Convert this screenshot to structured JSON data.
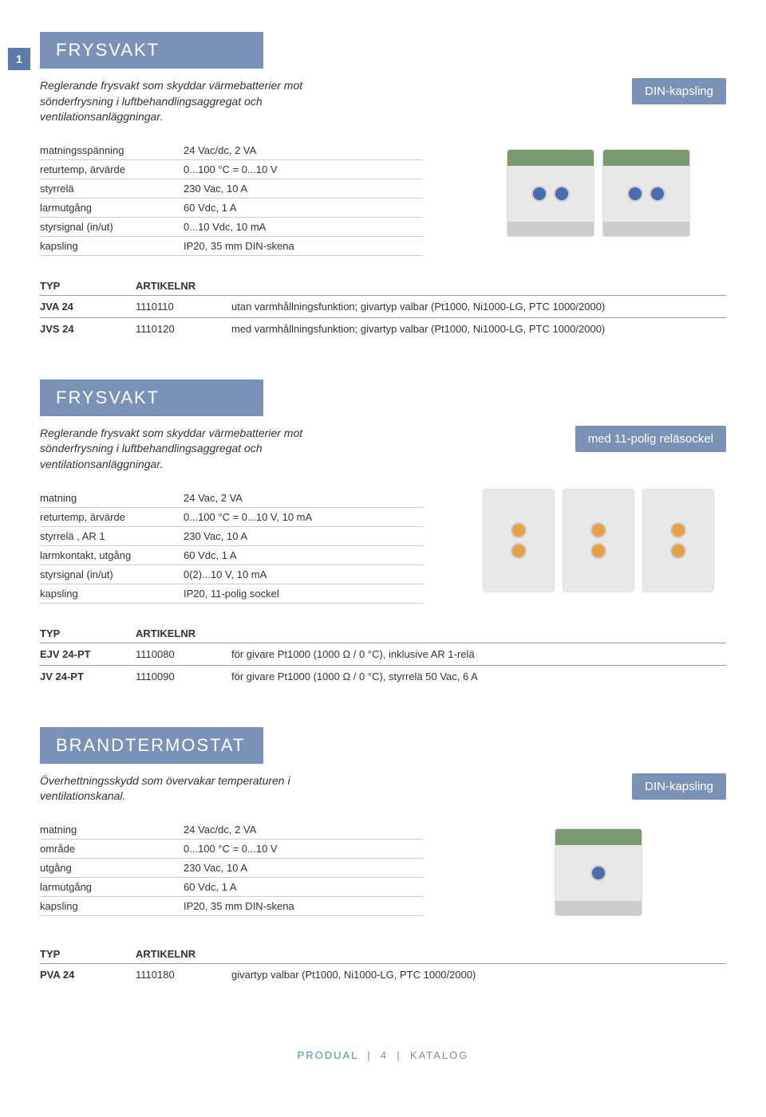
{
  "page_number": "1",
  "sections": [
    {
      "title": "FRYSVAKT",
      "description": "Reglerande frysvakt som skyddar värmebatterier mot sönderfrysning i luftbehandlingsaggregat och ventilationsanläggningar.",
      "badge": "DIN-kapsling",
      "specs": [
        {
          "label": "matningsspänning",
          "value": "24 Vac/dc, 2 VA"
        },
        {
          "label": "returtemp, ärvärde",
          "value": "0...100 °C = 0...10 V"
        },
        {
          "label": "styrrelä",
          "value": "230 Vac, 10 A"
        },
        {
          "label": "larmutgång",
          "value": "60 Vdc, 1 A"
        },
        {
          "label": "styrsignal (in/ut)",
          "value": "0...10 Vdc, 10 mA"
        },
        {
          "label": "kapsling",
          "value": "IP20, 35 mm DIN-skena"
        }
      ],
      "typ_header": {
        "col1": "TYP",
        "col2": "ARTIKELNR"
      },
      "typ_rows": [
        {
          "col1": "JVA 24",
          "col2": "1110110",
          "col3": "utan varmhållningsfunktion; givartyp valbar (Pt1000, Ni1000-LG, PTC 1000/2000)"
        },
        {
          "col1": "JVS 24",
          "col2": "1110120",
          "col3": "med varmhållningsfunktion; givartyp valbar (Pt1000, Ni1000-LG, PTC 1000/2000)"
        }
      ],
      "img_style": "din-double"
    },
    {
      "title": "FRYSVAKT",
      "description": "Reglerande frysvakt som skyddar värmebatterier mot sönderfrysning i luftbehandlingsaggregat och ventilationsanläggningar.",
      "badge": "med 11-polig reläsockel",
      "specs": [
        {
          "label": "matning",
          "value": "24 Vac, 2 VA"
        },
        {
          "label": "returtemp, ärvärde",
          "value": "0...100 °C = 0...10 V, 10 mA"
        },
        {
          "label": "styrrelä , AR 1",
          "value": "230 Vac, 10 A"
        },
        {
          "label": "larmkontakt, utgång",
          "value": "60 Vdc, 1 A"
        },
        {
          "label": "styrsignal (in/ut)",
          "value": "0(2)...10 V, 10 mA"
        },
        {
          "label": "kapsling",
          "value": "IP20, 11-polig sockel"
        }
      ],
      "typ_header": {
        "col1": "TYP",
        "col2": "ARTIKELNR"
      },
      "typ_rows": [
        {
          "col1": "EJV 24-PT",
          "col2": "1110080",
          "col3": "för givare Pt1000 (1000 Ω / 0 °C), inklusive AR 1-relä"
        },
        {
          "col1": "JV 24-PT",
          "col2": "1110090",
          "col3": "för givare Pt1000 (1000 Ω / 0 °C), styrrelä 50 Vac, 6 A"
        }
      ],
      "img_style": "socket-triple"
    },
    {
      "title": "BRANDTERMOSTAT",
      "description": "Överhettningsskydd som övervakar temperaturen i ventilationskanal.",
      "badge": "DIN-kapsling",
      "specs": [
        {
          "label": "matning",
          "value": "24 Vac/dc, 2 VA"
        },
        {
          "label": "område",
          "value": "0...100 °C = 0...10 V"
        },
        {
          "label": "utgång",
          "value": "230 Vac, 10 A"
        },
        {
          "label": "larmutgång",
          "value": "60 Vdc, 1 A"
        },
        {
          "label": "kapsling",
          "value": "IP20, 35 mm DIN-skena"
        }
      ],
      "typ_header": {
        "col1": "TYP",
        "col2": "ARTIKELNR"
      },
      "typ_rows": [
        {
          "col1": "PVA 24",
          "col2": "1110180",
          "col3": "givartyp valbar (Pt1000, Ni1000-LG, PTC 1000/2000)"
        }
      ],
      "img_style": "din-single"
    }
  ],
  "footer": {
    "brand": "PRODUAL",
    "sep1": "|",
    "page": "4",
    "sep2": "|",
    "label": "KATALOG"
  },
  "colors": {
    "header_bg": "#7a92b8",
    "badge_bg": "#7a92b8",
    "page_num_bg": "#5b7ca8",
    "text": "#333333",
    "border": "#cccccc",
    "footer_brand": "#4a94a8"
  }
}
